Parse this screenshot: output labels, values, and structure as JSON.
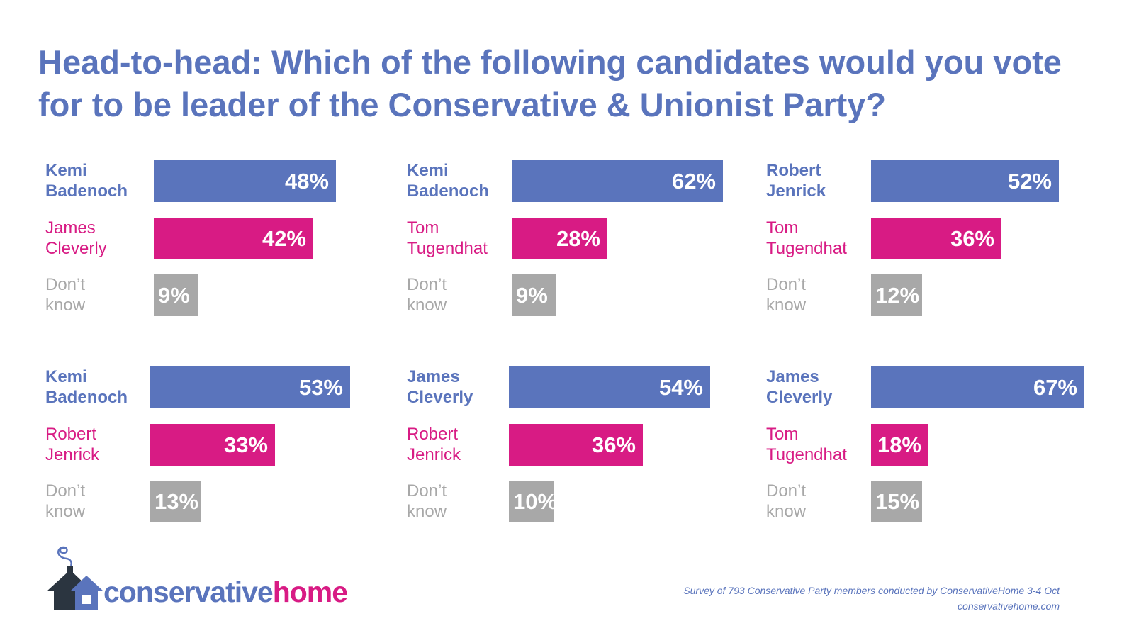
{
  "colors": {
    "candidate_a": "#5A74BC",
    "candidate_b": "#D81B84",
    "dont_know": "#A8A8A8"
  },
  "chart_data": {
    "type": "bar",
    "title": "Head-to-head: Which of the following candidates would you vote for to be leader of the Conservative & Unionist Party?",
    "unit": "%",
    "panels": [
      {
        "categories": [
          "Kemi Badenoch",
          "James Cleverly",
          "Don’t know"
        ],
        "values": [
          48,
          42,
          9
        ]
      },
      {
        "categories": [
          "Kemi Badenoch",
          "Tom Tugendhat",
          "Don’t know"
        ],
        "values": [
          62,
          28,
          9
        ]
      },
      {
        "categories": [
          "Robert Jenrick",
          "Tom Tugendhat",
          "Don’t know"
        ],
        "values": [
          52,
          36,
          12
        ]
      },
      {
        "categories": [
          "Kemi Badenoch",
          "Robert Jenrick",
          "Don’t know"
        ],
        "values": [
          53,
          33,
          13
        ]
      },
      {
        "categories": [
          "James Cleverly",
          "Robert Jenrick",
          "Don’t know"
        ],
        "values": [
          54,
          36,
          10
        ]
      },
      {
        "categories": [
          "James Cleverly",
          "Tom Tugendhat",
          "Don’t know"
        ],
        "values": [
          67,
          18,
          15
        ]
      }
    ],
    "labels": [
      [
        [
          "Kemi",
          "Badenoch"
        ],
        [
          "James",
          "Cleverly"
        ],
        [
          "Don’t",
          "know"
        ]
      ],
      [
        [
          "Kemi",
          "Badenoch"
        ],
        [
          "Tom",
          "Tugendhat"
        ],
        [
          "Don’t",
          "know"
        ]
      ],
      [
        [
          "Robert",
          "Jenrick"
        ],
        [
          "Tom",
          "Tugendhat"
        ],
        [
          "Don’t",
          "know"
        ]
      ],
      [
        [
          "Kemi",
          "Badenoch"
        ],
        [
          "Robert",
          "Jenrick"
        ],
        [
          "Don’t",
          "know"
        ]
      ],
      [
        [
          "James",
          "Cleverly"
        ],
        [
          "Robert",
          "Jenrick"
        ],
        [
          "Don’t",
          "know"
        ]
      ],
      [
        [
          "James",
          "Cleverly"
        ],
        [
          "Tom",
          "Tugendhat"
        ],
        [
          "Don’t",
          "know"
        ]
      ]
    ],
    "value_labels": [
      [
        "48%",
        "42%",
        "9%"
      ],
      [
        "62%",
        "28%",
        "9%"
      ],
      [
        "52%",
        "36%",
        "12%"
      ],
      [
        "53%",
        "33%",
        "13%"
      ],
      [
        "54%",
        "36%",
        "10%"
      ],
      [
        "67%",
        "18%",
        "15%"
      ]
    ]
  },
  "logo": {
    "part1": "conservative",
    "part2": "home"
  },
  "footer": {
    "source": "Survey of 793 Conservative Party members conducted by ConservativeHome 3-4 Oct",
    "site": "conservativehome.com"
  }
}
